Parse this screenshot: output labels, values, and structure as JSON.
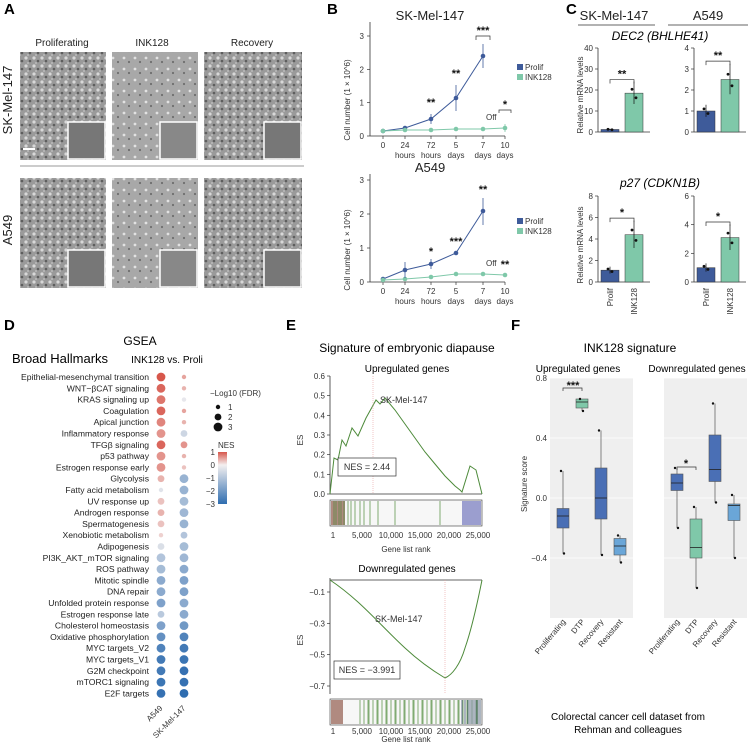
{
  "panel_letters": [
    "A",
    "B",
    "C",
    "D",
    "E",
    "F"
  ],
  "panel_a": {
    "col_labels": [
      "Proliferating",
      "INK128",
      "Recovery"
    ],
    "row_labels": [
      "SK-Mel-147",
      "A549"
    ]
  },
  "panel_b": {
    "top": {
      "title": "SK-Mel-147",
      "ylabel": "Cell number (1 × 10^6)",
      "yticks": [
        "0",
        "1",
        "2",
        "3"
      ],
      "xticks": [
        "0",
        "24",
        "72",
        "5",
        "7",
        "10"
      ],
      "xunits": [
        "hours",
        "hours",
        "days",
        "days",
        "days"
      ],
      "legend": [
        "Prolif",
        "INK128"
      ],
      "off_label": "Off",
      "sig": [
        "**",
        "**",
        "***",
        "*"
      ]
    },
    "bottom": {
      "title": "A549",
      "ylabel": "Cell number (1 × 10^6)",
      "yticks": [
        "0",
        "1",
        "2",
        "3"
      ],
      "xticks": [
        "0",
        "24",
        "72",
        "5",
        "7",
        "10"
      ],
      "xunits": [
        "hours",
        "hours",
        "days",
        "days",
        "days"
      ],
      "legend": [
        "Prolif",
        "INK128"
      ],
      "off_label": "Off",
      "sig": [
        "*",
        "***",
        "**",
        "**"
      ]
    }
  },
  "panel_c": {
    "headers": [
      "SK-Mel-147",
      "A549"
    ],
    "gene1": "DEC2 (BHLHE41)",
    "gene2": "p27 (CDKN1B)",
    "ylabel": "Relative mRNA levels",
    "xcats": [
      "Prolif",
      "INK128"
    ],
    "sig1": [
      "**",
      "**"
    ],
    "sig2": [
      "*",
      "*"
    ],
    "yticks_1a": [
      "0",
      "10",
      "20",
      "30",
      "40"
    ],
    "yticks_1b": [
      "0",
      "1",
      "2",
      "3",
      "4"
    ],
    "yticks_2a": [
      "0",
      "2",
      "4",
      "6",
      "8"
    ],
    "yticks_2b": [
      "0",
      "2",
      "4",
      "6"
    ]
  },
  "panel_d": {
    "title": "GSEA",
    "subtitle": "Broad Hallmarks",
    "compare": "INK128 vs. Proli",
    "fdr_title": "−Log10 (FDR)",
    "fdr_levels": [
      "1",
      "2",
      "3"
    ],
    "nes_title": "NES",
    "nes_ticks": [
      "1",
      "0",
      "−1",
      "−2",
      "−3"
    ],
    "columns": [
      "A549",
      "SK-Mel-147"
    ],
    "hallmarks": [
      "Epithelial-mesenchymal transition",
      "WNT−βCAT signaling",
      "KRAS signaling up",
      "Coagulation",
      "Apical junction",
      "Inflammatory response",
      "TFGβ signaling",
      "p53 pathway",
      "Estrogen response early",
      "Glycolysis",
      "Fatty acid metabolism",
      "UV response up",
      "Androgen response",
      "Spermatogenesis",
      "Xenobiotic metabolism",
      "Adipogenesis",
      "PI3K_AKT_mTOR signaling",
      "ROS pathway",
      "Mitotic spindle",
      "DNA repair",
      "Unfolded protein response",
      "Estrogen response late",
      "Cholesterol homeostasis",
      "Oxidative phosphorylation",
      "MYC targets_V2",
      "MYC targets_V1",
      "G2M checkpoint",
      "mTORC1 signaling",
      "E2F targets"
    ],
    "nes_a549": [
      1.0,
      0.9,
      0.8,
      0.9,
      0.7,
      0.6,
      0.9,
      0.6,
      0.6,
      0.4,
      -0.3,
      0.3,
      0.4,
      0.3,
      0.2,
      -0.4,
      -1.0,
      -1.2,
      -1.6,
      -1.6,
      -1.8,
      -0.9,
      -1.8,
      -2.2,
      -2.5,
      -2.7,
      -2.7,
      -2.8,
      -2.9
    ],
    "nes_sk": [
      0.5,
      0.4,
      -0.2,
      0.5,
      0.4,
      -0.6,
      0.6,
      0.4,
      0.3,
      -1.4,
      -1.4,
      -1.2,
      -1.3,
      -1.4,
      -1.0,
      -1.2,
      -1.3,
      -1.6,
      -1.8,
      -1.8,
      -1.6,
      -1.6,
      -2.0,
      -2.5,
      -2.7,
      -2.8,
      -2.9,
      -2.9,
      -3.0
    ],
    "fdr_a549": [
      3,
      3,
      3,
      3,
      3,
      3,
      3,
      3,
      3,
      2,
      1,
      2,
      2,
      2,
      1,
      2,
      3,
      3,
      3,
      3,
      3,
      2,
      3,
      3,
      3,
      3,
      3,
      3,
      3
    ],
    "fdr_sk": [
      1,
      1,
      1,
      1,
      1,
      2,
      2,
      1,
      1,
      3,
      3,
      3,
      3,
      3,
      2,
      3,
      3,
      3,
      3,
      3,
      3,
      3,
      3,
      3,
      3,
      3,
      3,
      3,
      3
    ]
  },
  "panel_e": {
    "title": "Signature of embryonic diapause",
    "up": {
      "subtitle": "Upregulated genes",
      "label": "SK-Mel-147",
      "nes": "NES = 2.44",
      "yticks": [
        "0.6",
        "0.5",
        "0.4",
        "0.3",
        "0.2",
        "0.1",
        "0.0"
      ],
      "xticks": [
        "1",
        "5,000",
        "10,000",
        "15,000",
        "20,000",
        "25,000"
      ],
      "xlabel": "Gene list rank",
      "ylabel": "ES"
    },
    "down": {
      "subtitle": "Downregulated genes",
      "label": "SK-Mel-147",
      "nes": "NES = −3.991",
      "yticks": [
        "−0.1",
        "−0.3",
        "−0.5",
        "−0.7"
      ],
      "xticks": [
        "1",
        "5,000",
        "10,000",
        "15,000",
        "20,000",
        "25,000"
      ],
      "xlabel": "Gene list rank",
      "ylabel": "ES"
    }
  },
  "panel_f": {
    "title": "INK128 signature",
    "sub_up": "Upregulated genes",
    "sub_down": "Downregulated genes",
    "ylabel": "Signature score",
    "yticks": [
      "0.8",
      "0.4",
      "0.0",
      "−0.4"
    ],
    "cats": [
      "Proliferating",
      "DTP",
      "Recovery",
      "Resistant"
    ],
    "sig_up": "***",
    "sig_down": "*",
    "caption1": "Colorectal cancer cell dataset from",
    "caption2": "Rehman and colleagues"
  },
  "colors": {
    "prolif": "#3e5b9a",
    "ink128": "#7fc8a9",
    "recovery": "#4a6fb5",
    "resistant": "#6aa6d8",
    "red": "#d7574b",
    "blue": "#2f6db0"
  }
}
